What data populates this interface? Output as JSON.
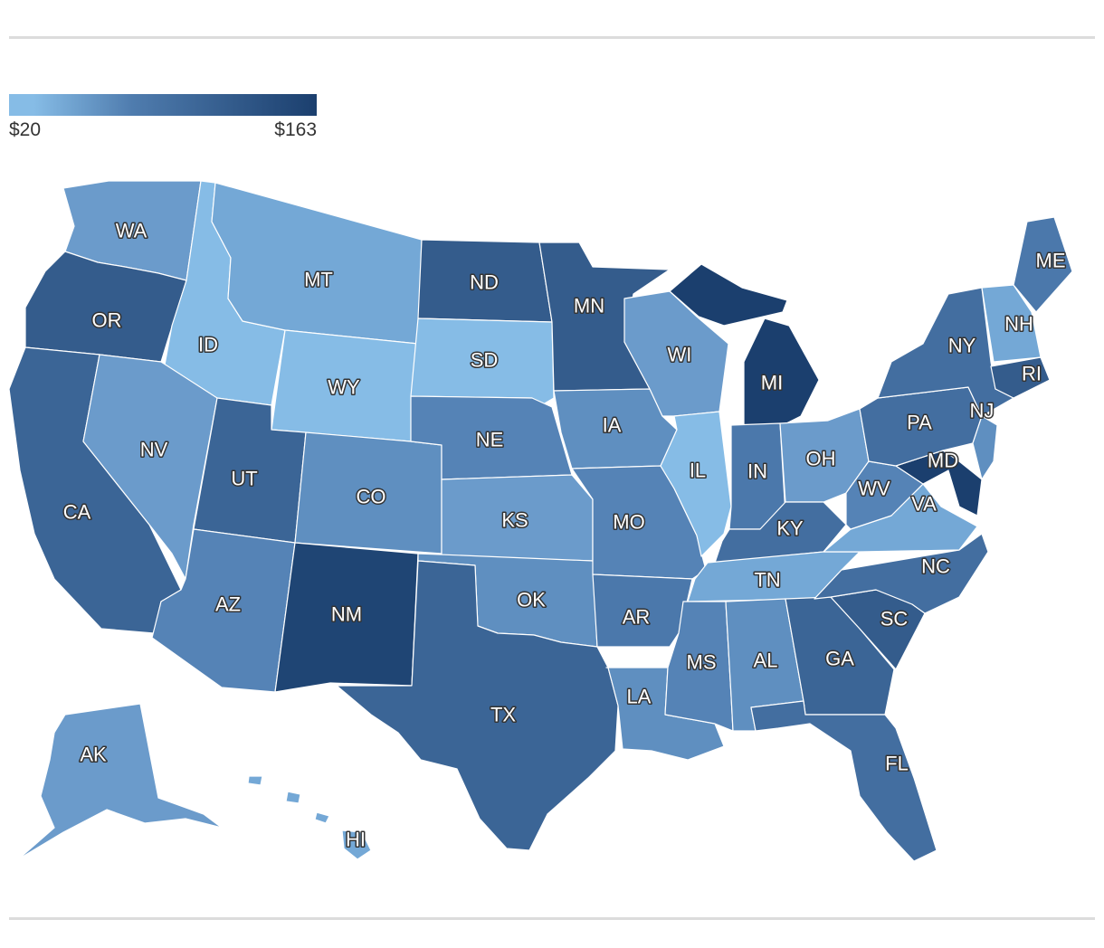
{
  "legend": {
    "min_label": "$20",
    "max_label": "$163",
    "min_color": "#86bce6",
    "max_color": "#1b3f6e"
  },
  "colors": {
    "c1": "#86bce6",
    "c2": "#74a8d6",
    "c3": "#6b9bcb",
    "c4": "#5f8fc0",
    "c5": "#5583b6",
    "c6": "#4b78ab",
    "c7": "#436ea0",
    "c8": "#3b6596",
    "c9": "#345c8c",
    "c10": "#2a4f80",
    "c11": "#1f4574",
    "c12": "#1b3f6e"
  },
  "states": [
    {
      "code": "WA"
    },
    {
      "code": "OR"
    },
    {
      "code": "CA"
    },
    {
      "code": "ID"
    },
    {
      "code": "NV"
    },
    {
      "code": "MT"
    },
    {
      "code": "WY"
    },
    {
      "code": "UT"
    },
    {
      "code": "AZ"
    },
    {
      "code": "CO"
    },
    {
      "code": "NM"
    },
    {
      "code": "ND"
    },
    {
      "code": "SD"
    },
    {
      "code": "NE"
    },
    {
      "code": "KS"
    },
    {
      "code": "OK"
    },
    {
      "code": "TX"
    },
    {
      "code": "MN"
    },
    {
      "code": "IA"
    },
    {
      "code": "MO"
    },
    {
      "code": "AR"
    },
    {
      "code": "LA"
    },
    {
      "code": "WI"
    },
    {
      "code": "IL"
    },
    {
      "code": "MI"
    },
    {
      "code": "IN"
    },
    {
      "code": "OH"
    },
    {
      "code": "KY"
    },
    {
      "code": "TN"
    },
    {
      "code": "MS"
    },
    {
      "code": "AL"
    },
    {
      "code": "GA"
    },
    {
      "code": "FL"
    },
    {
      "code": "SC"
    },
    {
      "code": "NC"
    },
    {
      "code": "VA"
    },
    {
      "code": "WV"
    },
    {
      "code": "MD"
    },
    {
      "code": "PA"
    },
    {
      "code": "NY"
    },
    {
      "code": "NJ"
    },
    {
      "code": "RI"
    },
    {
      "code": "NH"
    },
    {
      "code": "ME"
    },
    {
      "code": "AK"
    },
    {
      "code": "HI"
    }
  ]
}
